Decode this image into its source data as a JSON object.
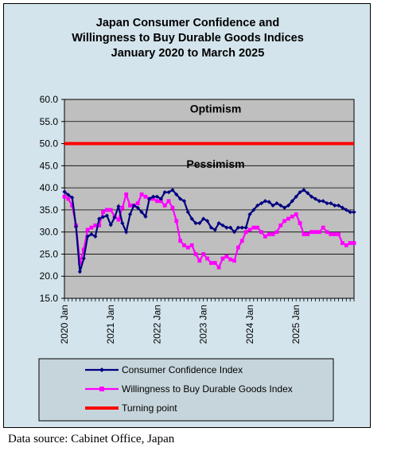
{
  "chart_data": {
    "type": "line",
    "title": [
      "Japan Consumer Confidence and",
      "Willingness to Buy Durable Goods Indices",
      "January 2020 to March 2025"
    ],
    "x_start": "2020-01",
    "x_labels": [
      "2020 Jan",
      "2021 Jan",
      "2022 Jan",
      "2023 Jan",
      "2024 Jan",
      "2025 Jan"
    ],
    "y_ticks": [
      "60.0",
      "55.0",
      "50.0",
      "45.0",
      "40.0",
      "35.0",
      "30.0",
      "25.0",
      "20.0",
      "15.0"
    ],
    "ylim": [
      15,
      60
    ],
    "regions": {
      "upper": "Optimism",
      "lower": "Pessimism"
    },
    "series": [
      {
        "name": "Consumer Confidence Index",
        "color": "#000080",
        "marker": "diamond",
        "values": [
          39.1,
          38.4,
          37.8,
          31.2,
          21.0,
          24.0,
          29.0,
          29.5,
          29.0,
          33.0,
          33.4,
          33.7,
          31.6,
          33.3,
          35.8,
          32.0,
          30.0,
          34.0,
          36.0,
          35.5,
          34.5,
          33.5,
          37.5,
          38.0,
          38.0,
          37.5,
          39.0,
          39.0,
          39.5,
          38.5,
          37.5,
          37.0,
          34.5,
          33.0,
          32.0,
          32.0,
          33.0,
          32.5,
          31.0,
          30.5,
          32.0,
          31.5,
          31.0,
          31.0,
          30.0,
          31.0,
          31.0,
          31.0,
          34.0,
          35.0,
          36.0,
          36.5,
          37.0,
          36.8,
          36.0,
          36.5,
          36.0,
          35.5,
          36.0,
          37.0,
          38.0,
          39.0,
          39.5,
          38.8,
          38.0,
          37.5,
          37.0,
          37.0,
          36.5,
          36.5,
          36.0,
          36.0,
          35.5,
          35.0,
          34.5,
          34.5
        ]
      },
      {
        "name": "Willingness to Buy Durable Goods Index",
        "color": "#ff00ff",
        "marker": "square",
        "values": [
          38.0,
          37.5,
          36.0,
          31.5,
          23.0,
          26.0,
          30.5,
          31.0,
          31.5,
          31.5,
          34.5,
          35.0,
          35.0,
          33.5,
          32.8,
          35.5,
          38.5,
          36.0,
          36.0,
          36.5,
          38.5,
          38.0,
          37.5,
          37.5,
          37.0,
          37.0,
          36.0,
          37.0,
          35.5,
          32.5,
          28.0,
          27.0,
          26.5,
          27.0,
          25.0,
          23.5,
          25.0,
          24.0,
          23.0,
          23.0,
          22.0,
          24.0,
          24.5,
          23.8,
          23.5,
          26.5,
          28.0,
          30.0,
          30.5,
          31.0,
          31.0,
          30.0,
          29.0,
          29.5,
          29.5,
          30.0,
          31.5,
          32.5,
          33.0,
          33.5,
          34.0,
          32.0,
          29.5,
          29.5,
          30.0,
          30.0,
          30.0,
          31.0,
          30.0,
          29.5,
          29.5,
          29.5,
          27.5,
          27.0,
          27.5,
          27.5
        ]
      },
      {
        "name": "Turning point",
        "color": "#ff0000",
        "marker": "none",
        "values": [
          50.0
        ]
      }
    ],
    "plot_bg": "#bfbfbf",
    "chart_bg": "#d3e4ec",
    "legend_placement": "bottom",
    "grid": "horizontal"
  },
  "source": "Data source: Cabinet Office, Japan"
}
